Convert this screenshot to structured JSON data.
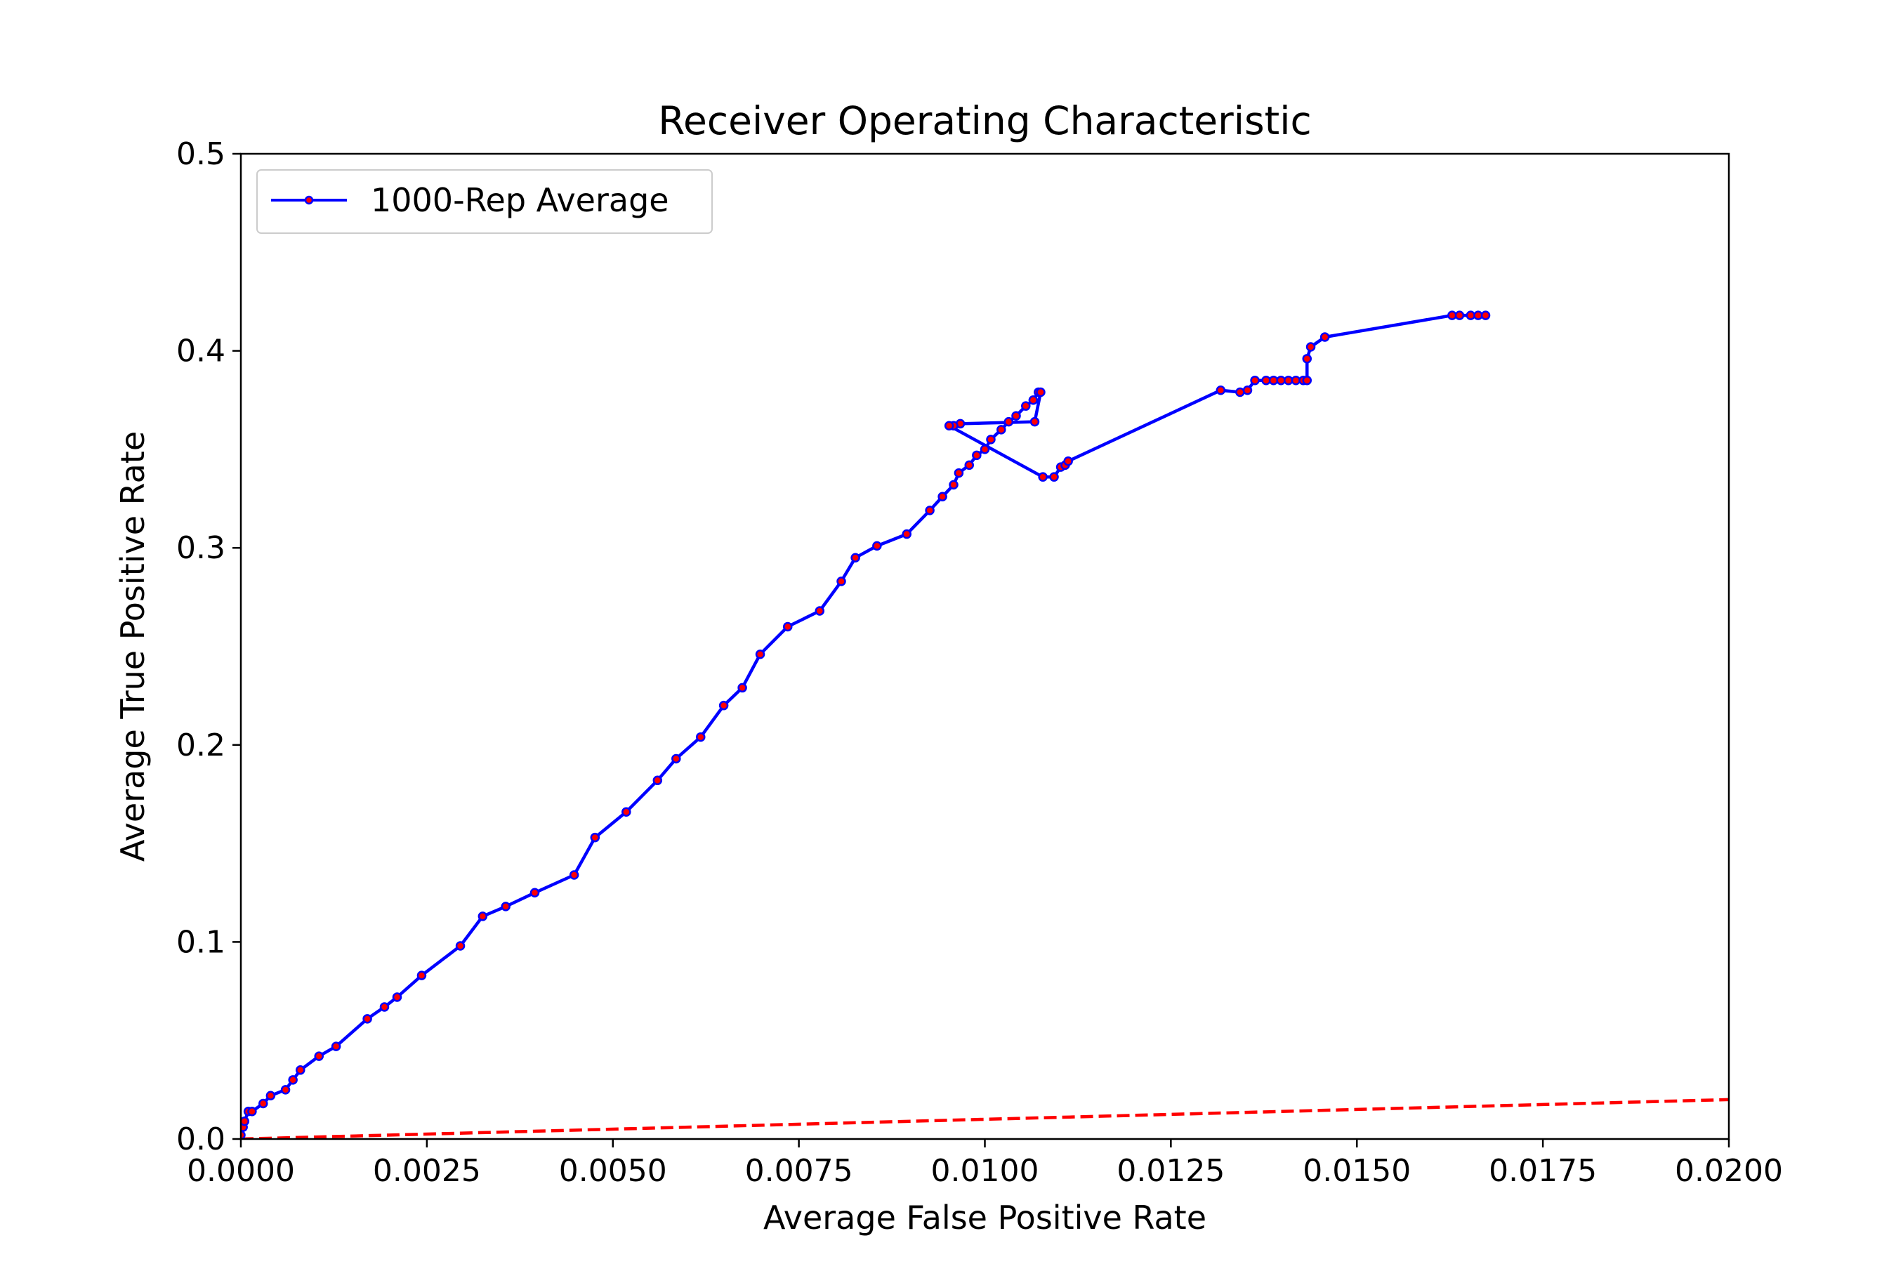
{
  "chart_data": {
    "type": "line",
    "title": "Receiver Operating Characteristic",
    "xlabel": "Average False Positive Rate",
    "ylabel": "Average True Positive Rate",
    "xlim": [
      0.0,
      0.02
    ],
    "ylim": [
      0.0,
      0.5
    ],
    "xticks": [
      "0.0000",
      "0.0025",
      "0.0050",
      "0.0075",
      "0.0100",
      "0.0125",
      "0.0150",
      "0.0175",
      "0.0200"
    ],
    "yticks": [
      "0.0",
      "0.1",
      "0.2",
      "0.3",
      "0.4",
      "0.5"
    ],
    "grid": false,
    "legend_position": "upper-left",
    "colors": {
      "series_line": "#0000ff",
      "marker_fill": "#ff0000",
      "marker_edge": "#0000ff",
      "reference_line": "#ff0000"
    },
    "series": [
      {
        "name": "1000-Rep Average",
        "style": "solid-with-markers",
        "x": [
          0.0,
          3e-05,
          5e-05,
          0.0001,
          0.00015,
          0.0003,
          0.0004,
          0.0006,
          0.0007,
          0.0008,
          0.00105,
          0.00128,
          0.0017,
          0.00193,
          0.0021,
          0.00243,
          0.00295,
          0.00325,
          0.00356,
          0.00395,
          0.00448,
          0.00476,
          0.00518,
          0.0056,
          0.00585,
          0.00618,
          0.00649,
          0.00674,
          0.00698,
          0.00735,
          0.00778,
          0.00807,
          0.00826,
          0.00855,
          0.00895,
          0.00926,
          0.00943,
          0.00958,
          0.00965,
          0.00979,
          0.00989,
          0.01,
          0.01008,
          0.01022,
          0.01032,
          0.01042,
          0.01055,
          0.01065,
          0.01072,
          0.01075,
          0.01067,
          0.00967,
          0.00958,
          0.00952,
          0.01078,
          0.01093,
          0.01102,
          0.01108,
          0.01112,
          0.01317,
          0.01343,
          0.01353,
          0.01363,
          0.01378,
          0.01388,
          0.01398,
          0.01408,
          0.01418,
          0.01428,
          0.01433,
          0.01433,
          0.01438,
          0.01457,
          0.01628,
          0.01638,
          0.01653,
          0.01663,
          0.01673
        ],
        "y": [
          0.002,
          0.006,
          0.009,
          0.014,
          0.014,
          0.018,
          0.022,
          0.025,
          0.03,
          0.035,
          0.042,
          0.047,
          0.061,
          0.067,
          0.072,
          0.083,
          0.098,
          0.113,
          0.118,
          0.125,
          0.134,
          0.153,
          0.166,
          0.182,
          0.193,
          0.204,
          0.22,
          0.229,
          0.246,
          0.26,
          0.268,
          0.283,
          0.295,
          0.301,
          0.307,
          0.319,
          0.326,
          0.332,
          0.338,
          0.342,
          0.347,
          0.35,
          0.355,
          0.36,
          0.364,
          0.367,
          0.372,
          0.375,
          0.379,
          0.379,
          0.364,
          0.363,
          0.362,
          0.362,
          0.336,
          0.336,
          0.341,
          0.342,
          0.344,
          0.38,
          0.379,
          0.38,
          0.385,
          0.385,
          0.385,
          0.385,
          0.385,
          0.385,
          0.385,
          0.385,
          0.396,
          0.402,
          0.407,
          0.418,
          0.418,
          0.418,
          0.418,
          0.418
        ]
      },
      {
        "style": "dashed",
        "x": [
          0.0,
          0.02
        ],
        "y": [
          0.0,
          0.02
        ]
      }
    ]
  }
}
